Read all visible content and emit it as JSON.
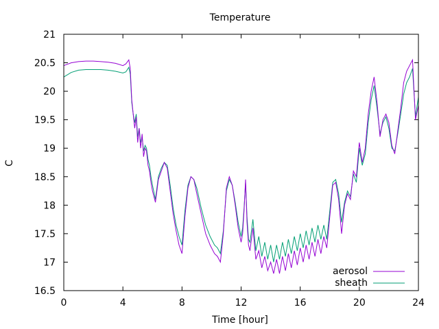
{
  "chart_data": {
    "type": "line",
    "title": "Temperature",
    "xlabel": "Time [hour]",
    "ylabel": "C",
    "xlim": [
      0,
      24
    ],
    "ylim": [
      16.5,
      21
    ],
    "xticks": [
      "0",
      "4",
      "8",
      "12",
      "16",
      "20",
      "24"
    ],
    "yticks": [
      "16.5",
      "17",
      "17.5",
      "18",
      "18.5",
      "19",
      "19.5",
      "20",
      "20.5",
      "21"
    ],
    "grid": false,
    "legend_position": "bottom-right",
    "series": [
      {
        "name": "aerosol",
        "color": "#9400d3",
        "x": [
          0,
          0.5,
          1,
          1.5,
          2,
          2.5,
          3,
          3.5,
          4,
          4.2,
          4.4,
          4.5,
          4.6,
          4.7,
          4.8,
          4.9,
          5.0,
          5.1,
          5.2,
          5.3,
          5.4,
          5.5,
          5.6,
          5.7,
          5.8,
          5.9,
          6.0,
          6.2,
          6.4,
          6.6,
          6.8,
          7.0,
          7.2,
          7.4,
          7.6,
          7.8,
          8.0,
          8.2,
          8.4,
          8.6,
          8.8,
          9.0,
          9.3,
          9.6,
          9.9,
          10.2,
          10.4,
          10.6,
          10.8,
          11.0,
          11.2,
          11.4,
          11.6,
          11.8,
          12.0,
          12.1,
          12.2,
          12.3,
          12.4,
          12.5,
          12.6,
          12.8,
          13.0,
          13.2,
          13.4,
          13.6,
          13.8,
          14.0,
          14.2,
          14.4,
          14.6,
          14.8,
          15.0,
          15.2,
          15.4,
          15.6,
          15.8,
          16.0,
          16.2,
          16.4,
          16.6,
          16.8,
          17.0,
          17.2,
          17.4,
          17.6,
          17.8,
          18.0,
          18.2,
          18.4,
          18.6,
          18.8,
          19.0,
          19.2,
          19.4,
          19.6,
          19.8,
          20.0,
          20.2,
          20.4,
          20.6,
          20.8,
          21.0,
          21.2,
          21.4,
          21.6,
          21.8,
          22.0,
          22.2,
          22.4,
          22.6,
          22.8,
          23.0,
          23.2,
          23.4,
          23.6,
          23.8,
          24.0
        ],
        "y": [
          20.45,
          20.5,
          20.52,
          20.53,
          20.53,
          20.52,
          20.51,
          20.49,
          20.45,
          20.48,
          20.55,
          20.4,
          19.85,
          19.6,
          19.35,
          19.55,
          19.1,
          19.35,
          19.0,
          19.25,
          18.85,
          19.0,
          18.95,
          18.7,
          18.6,
          18.4,
          18.25,
          18.05,
          18.45,
          18.6,
          18.75,
          18.65,
          18.25,
          17.85,
          17.55,
          17.3,
          17.15,
          17.8,
          18.3,
          18.5,
          18.45,
          18.2,
          17.85,
          17.5,
          17.3,
          17.15,
          17.1,
          17.0,
          17.5,
          18.3,
          18.5,
          18.35,
          18.0,
          17.6,
          17.35,
          17.5,
          17.9,
          18.45,
          17.7,
          17.3,
          17.2,
          17.6,
          17.05,
          17.2,
          16.9,
          17.1,
          16.85,
          17.0,
          16.8,
          17.05,
          16.8,
          17.1,
          16.85,
          17.15,
          16.9,
          17.2,
          16.95,
          17.25,
          17.0,
          17.3,
          17.05,
          17.35,
          17.1,
          17.4,
          17.15,
          17.45,
          17.25,
          17.8,
          18.35,
          18.4,
          18.1,
          17.5,
          18.0,
          18.2,
          18.1,
          18.6,
          18.5,
          19.1,
          18.75,
          19.0,
          19.6,
          20.0,
          20.25,
          19.8,
          19.2,
          19.5,
          19.6,
          19.45,
          19.05,
          18.9,
          19.3,
          19.7,
          20.15,
          20.35,
          20.45,
          20.55,
          19.5,
          19.75
        ]
      },
      {
        "name": "sheath",
        "color": "#009e73",
        "x": [
          0,
          0.5,
          1,
          1.5,
          2,
          2.5,
          3,
          3.5,
          4,
          4.2,
          4.4,
          4.5,
          4.6,
          4.7,
          4.8,
          4.9,
          5.0,
          5.1,
          5.2,
          5.3,
          5.4,
          5.5,
          5.6,
          5.7,
          5.8,
          5.9,
          6.0,
          6.2,
          6.4,
          6.6,
          6.8,
          7.0,
          7.2,
          7.4,
          7.6,
          7.8,
          8.0,
          8.2,
          8.4,
          8.6,
          8.8,
          9.0,
          9.3,
          9.6,
          9.9,
          10.2,
          10.4,
          10.6,
          10.8,
          11.0,
          11.2,
          11.4,
          11.6,
          11.8,
          12.0,
          12.1,
          12.2,
          12.3,
          12.4,
          12.5,
          12.6,
          12.8,
          13.0,
          13.2,
          13.4,
          13.6,
          13.8,
          14.0,
          14.2,
          14.4,
          14.6,
          14.8,
          15.0,
          15.2,
          15.4,
          15.6,
          15.8,
          16.0,
          16.2,
          16.4,
          16.6,
          16.8,
          17.0,
          17.2,
          17.4,
          17.6,
          17.8,
          18.0,
          18.2,
          18.4,
          18.6,
          18.8,
          19.0,
          19.2,
          19.4,
          19.6,
          19.8,
          20.0,
          20.2,
          20.4,
          20.6,
          20.8,
          21.0,
          21.2,
          21.4,
          21.6,
          21.8,
          22.0,
          22.2,
          22.4,
          22.6,
          22.8,
          23.0,
          23.2,
          23.4,
          23.6,
          23.8,
          24.0
        ],
        "y": [
          20.25,
          20.33,
          20.37,
          20.38,
          20.38,
          20.38,
          20.37,
          20.35,
          20.32,
          20.34,
          20.42,
          20.3,
          19.8,
          19.6,
          19.45,
          19.6,
          19.2,
          19.35,
          19.1,
          19.2,
          18.95,
          19.05,
          19.0,
          18.8,
          18.7,
          18.5,
          18.35,
          18.1,
          18.5,
          18.65,
          18.75,
          18.7,
          18.35,
          17.95,
          17.65,
          17.45,
          17.3,
          17.9,
          18.35,
          18.5,
          18.45,
          18.3,
          17.95,
          17.65,
          17.45,
          17.3,
          17.25,
          17.15,
          17.55,
          18.25,
          18.45,
          18.35,
          18.05,
          17.7,
          17.45,
          17.6,
          17.95,
          18.4,
          17.8,
          17.4,
          17.35,
          17.75,
          17.2,
          17.45,
          17.1,
          17.35,
          17.05,
          17.3,
          17.0,
          17.3,
          17.05,
          17.35,
          17.1,
          17.4,
          17.15,
          17.45,
          17.2,
          17.5,
          17.25,
          17.55,
          17.3,
          17.6,
          17.35,
          17.65,
          17.4,
          17.65,
          17.4,
          17.9,
          18.4,
          18.45,
          18.2,
          17.7,
          18.05,
          18.25,
          18.15,
          18.55,
          18.4,
          19.0,
          18.7,
          18.9,
          19.45,
          19.85,
          20.1,
          19.7,
          19.25,
          19.45,
          19.55,
          19.35,
          19.0,
          18.95,
          19.25,
          19.6,
          19.95,
          20.15,
          20.25,
          20.4,
          19.55,
          19.9
        ]
      }
    ]
  }
}
